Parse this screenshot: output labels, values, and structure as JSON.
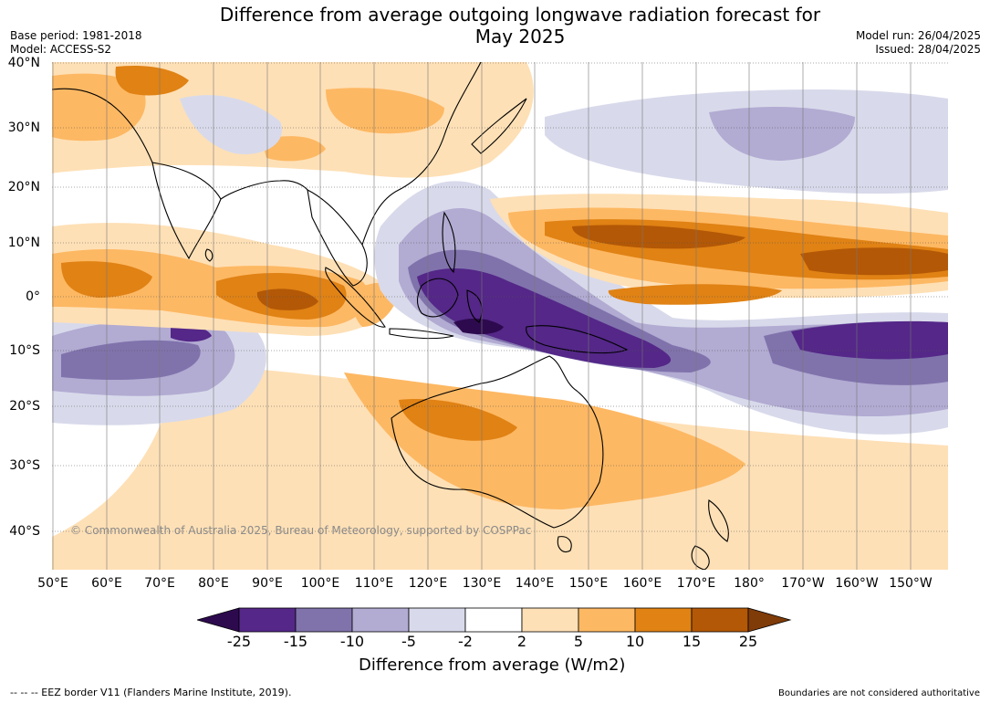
{
  "header": {
    "title_line1": "Difference from average outgoing longwave radiation forecast for",
    "title_line2": "May 2025",
    "base_period": "Base period: 1981-2018",
    "model": "Model: ACCESS-S2",
    "model_run": "Model run: 26/04/2025",
    "issued": "Issued: 28/04/2025"
  },
  "map": {
    "lat_labels": [
      "40°N",
      "30°N",
      "20°N",
      "10°N",
      "0°",
      "10°S",
      "20°S",
      "30°S",
      "40°S"
    ],
    "lon_labels": [
      "50°E",
      "60°E",
      "70°E",
      "80°E",
      "90°E",
      "100°E",
      "110°E",
      "120°E",
      "130°E",
      "140°E",
      "150°E",
      "160°E",
      "170°E",
      "180°",
      "170°W",
      "160°W",
      "150°W"
    ],
    "copyright": "© Commonwealth of Australia 2025, Bureau of Meteorology, supported by COSPPac"
  },
  "colorbar": {
    "ticks": [
      "-25",
      "-15",
      "-10",
      "-5",
      "-2",
      "2",
      "5",
      "10",
      "15",
      "25"
    ],
    "colors": [
      "#2d0a4e",
      "#542788",
      "#8073ac",
      "#b2abd2",
      "#d8daeb",
      "#ffffff",
      "#fee0b6",
      "#fdb863",
      "#e08214",
      "#b35806",
      "#7f3b08"
    ],
    "label": "Difference from average (W/m2)"
  },
  "footer": {
    "eez_note": "--  --  -- EEZ border V11 (Flanders Marine Institute, 2019).",
    "boundaries_note": "Boundaries are not considered authoritative"
  }
}
